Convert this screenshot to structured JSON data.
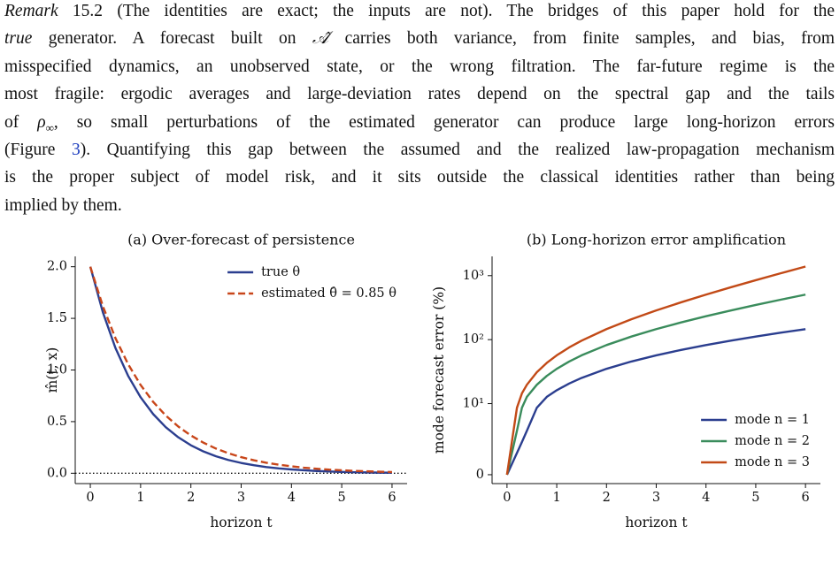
{
  "paragraph": {
    "lines": [
      [
        {
          "text": "Remark",
          "italic": true
        },
        " 15.2 (The identities are exact; the inputs are not). The bridges of this paper hold for the"
      ],
      [
        {
          "text": "true",
          "italic": true
        },
        " generator. A forecast built on ",
        {
          "text": "𝒜̂",
          "italic": true
        },
        " carries both variance, from finite samples, and bias, from"
      ],
      [
        "misspecified dynamics, an unobserved state, or the wrong filtration. The far-future regime is the"
      ],
      [
        "most fragile: ergodic averages and large-deviation rates depend on the spectral gap and the tails"
      ],
      [
        "of ",
        {
          "text": "ρ",
          "italic": true
        },
        {
          "text": "∞",
          "sub": true
        },
        ", so small perturbations of the estimated generator can produce large long-horizon errors"
      ],
      [
        "(Figure ",
        {
          "text": "3",
          "link": true
        },
        "). Quantifying this gap between the assumed and the realized law-propagation mechanism"
      ],
      [
        "is the proper subject of model risk, and it sits outside the classical identities rather than being"
      ],
      [
        "implied by them."
      ]
    ]
  },
  "chart_data": [
    {
      "type": "line",
      "title": "(a) Over-forecast of persistence",
      "xlabel": "horizon t",
      "ylabel": "m̂(t, x)",
      "x": [
        0,
        0.25,
        0.5,
        0.75,
        1,
        1.25,
        1.5,
        1.75,
        2,
        2.25,
        2.5,
        2.75,
        3,
        3.25,
        3.5,
        3.75,
        4,
        4.25,
        4.5,
        4.75,
        5,
        5.25,
        5.5,
        5.75,
        6
      ],
      "series": [
        {
          "name": "true θ",
          "color": "#2b3e8f",
          "dashed": false,
          "values": [
            2.0,
            1.558,
            1.213,
            0.945,
            0.736,
            0.573,
            0.446,
            0.348,
            0.271,
            0.211,
            0.164,
            0.128,
            0.1,
            0.078,
            0.06,
            0.047,
            0.037,
            0.029,
            0.022,
            0.017,
            0.013,
            0.01,
            0.008,
            0.006,
            0.005
          ]
        },
        {
          "name": "estimated θ̂ = 0.85 θ",
          "color": "#c8461a",
          "dashed": true,
          "values": [
            2.0,
            1.617,
            1.308,
            1.058,
            0.855,
            0.691,
            0.559,
            0.452,
            0.366,
            0.296,
            0.239,
            0.193,
            0.156,
            0.126,
            0.102,
            0.083,
            0.067,
            0.054,
            0.044,
            0.035,
            0.029,
            0.023,
            0.019,
            0.015,
            0.012
          ]
        }
      ],
      "reference_line": 0,
      "xlim": [
        -0.3,
        6.3
      ],
      "xticks": [
        0,
        1,
        2,
        3,
        4,
        5,
        6
      ],
      "ylim": [
        -0.1,
        2.1
      ],
      "yticks": [
        {
          "value": 0,
          "label": "0.0"
        },
        {
          "value": 0.5,
          "label": "0.5"
        },
        {
          "value": 1,
          "label": "1.0"
        },
        {
          "value": 1.5,
          "label": "1.5"
        },
        {
          "value": 2,
          "label": "2.0"
        }
      ],
      "yscale": "linear",
      "legend": "upper right",
      "grid": false
    },
    {
      "type": "line",
      "title": "(b) Long-horizon error amplification",
      "xlabel": "horizon t",
      "ylabel": "mode forecast error (%)",
      "x": [
        0,
        0.2,
        0.3,
        0.4,
        0.6,
        0.8,
        1,
        1.25,
        1.5,
        2,
        2.5,
        3,
        3.5,
        4,
        4.5,
        5,
        5.5,
        6
      ],
      "series": [
        {
          "name": "mode n = 1",
          "color": "#2b3e8f",
          "dashed": false,
          "values": [
            0,
            3.05,
            4.6,
            6.18,
            9.42,
            12.75,
            16.18,
            20.62,
            25.23,
            34.99,
            45.5,
            56.83,
            69.05,
            82.21,
            96.4,
            111.7,
            128.19,
            145.96
          ]
        },
        {
          "name": "mode n = 2",
          "color": "#3a8c5c",
          "dashed": false,
          "values": [
            0,
            6.18,
            9.42,
            12.75,
            19.72,
            27.12,
            34.99,
            45.5,
            56.83,
            82.21,
            111.7,
            145.96,
            185.77,
            232.01,
            285.74,
            348.17,
            420.7,
            504.96
          ]
        },
        {
          "name": "mode n = 3",
          "color": "#c24a17",
          "dashed": false,
          "values": [
            0,
            9.42,
            14.45,
            19.72,
            31.0,
            43.33,
            56.83,
            75.51,
            96.4,
            145.96,
            208.02,
            285.74,
            383.07,
            504.96,
            657.62,
            848.77,
            1088.2,
            1387.97
          ]
        }
      ],
      "xlim": [
        -0.3,
        6.3
      ],
      "xticks": [
        0,
        1,
        2,
        3,
        4,
        5,
        6
      ],
      "ylim": [
        -1.25,
        2000
      ],
      "yticks": [
        0,
        {
          "value": 10,
          "label": "10¹"
        },
        {
          "value": 100,
          "label": "10²"
        },
        {
          "value": 1000,
          "label": "10³"
        }
      ],
      "yscale": "symlog",
      "linthresh": 10,
      "legend": "lower right",
      "grid": false
    }
  ]
}
